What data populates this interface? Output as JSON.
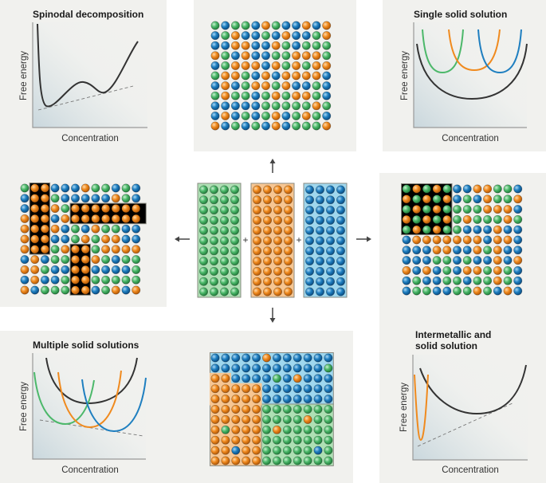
{
  "colors": {
    "green": "#4cb86a",
    "orange": "#f08a1e",
    "blue": "#1f7fc0",
    "panel": "#f1f1ee"
  },
  "panels": {
    "spinodal": {
      "title": "Spinodal decomposition",
      "ylabel": "Free energy",
      "xlabel": "Concentration"
    },
    "single": {
      "title": "Single solid solution",
      "ylabel": "Free energy",
      "xlabel": "Concentration"
    },
    "multiple": {
      "title": "Multiple solid solutions",
      "ylabel": "Free energy",
      "xlabel": "Concentration"
    },
    "intermetallic": {
      "title_line1": "Intermetallic and",
      "title_line2": "solid solution",
      "ylabel": "Free energy",
      "xlabel": "Concentration"
    }
  },
  "center": {
    "plus1": "+",
    "plus2": "+"
  }
}
